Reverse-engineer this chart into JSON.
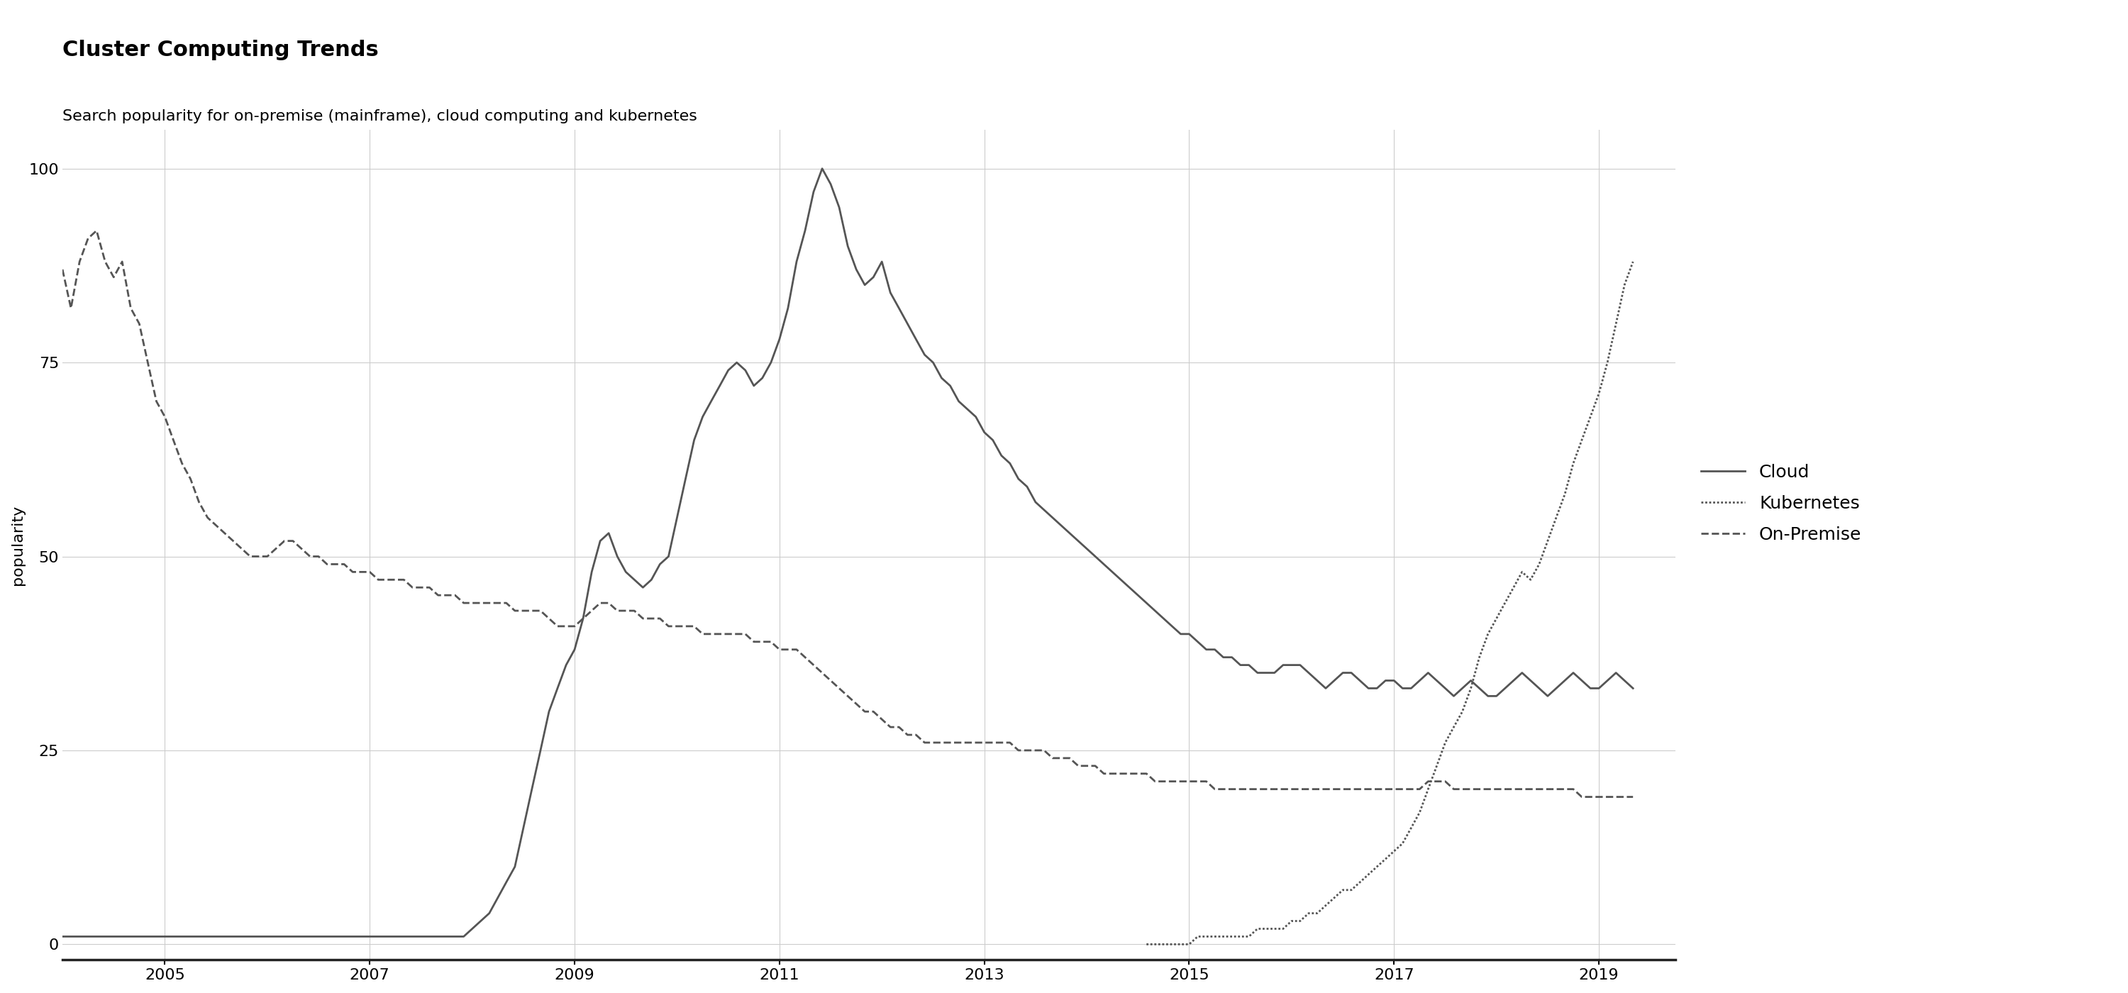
{
  "title": "Cluster Computing Trends",
  "subtitle": "Search popularity for on-premise (mainframe), cloud computing and kubernetes",
  "ylabel": "popularity",
  "background_color": "#ffffff",
  "line_color": "#555555",
  "grid_color": "#cccccc",
  "ylim": [
    -2,
    105
  ],
  "xlim_start": 2004.0,
  "xlim_end": 2019.75,
  "cloud": [
    [
      2004.0,
      1
    ],
    [
      2004.083,
      1
    ],
    [
      2004.167,
      1
    ],
    [
      2004.25,
      1
    ],
    [
      2004.333,
      1
    ],
    [
      2004.417,
      1
    ],
    [
      2004.5,
      1
    ],
    [
      2004.583,
      1
    ],
    [
      2004.667,
      1
    ],
    [
      2004.75,
      1
    ],
    [
      2004.833,
      1
    ],
    [
      2004.917,
      1
    ],
    [
      2005.0,
      1
    ],
    [
      2005.083,
      1
    ],
    [
      2005.167,
      1
    ],
    [
      2005.25,
      1
    ],
    [
      2005.333,
      1
    ],
    [
      2005.417,
      1
    ],
    [
      2005.5,
      1
    ],
    [
      2005.583,
      1
    ],
    [
      2005.667,
      1
    ],
    [
      2005.75,
      1
    ],
    [
      2005.833,
      1
    ],
    [
      2005.917,
      1
    ],
    [
      2006.0,
      1
    ],
    [
      2006.083,
      1
    ],
    [
      2006.167,
      1
    ],
    [
      2006.25,
      1
    ],
    [
      2006.333,
      1
    ],
    [
      2006.417,
      1
    ],
    [
      2006.5,
      1
    ],
    [
      2006.583,
      1
    ],
    [
      2006.667,
      1
    ],
    [
      2006.75,
      1
    ],
    [
      2006.833,
      1
    ],
    [
      2006.917,
      1
    ],
    [
      2007.0,
      1
    ],
    [
      2007.083,
      1
    ],
    [
      2007.167,
      1
    ],
    [
      2007.25,
      1
    ],
    [
      2007.333,
      1
    ],
    [
      2007.417,
      1
    ],
    [
      2007.5,
      1
    ],
    [
      2007.583,
      1
    ],
    [
      2007.667,
      1
    ],
    [
      2007.75,
      1
    ],
    [
      2007.833,
      1
    ],
    [
      2007.917,
      1
    ],
    [
      2008.0,
      2
    ],
    [
      2008.083,
      3
    ],
    [
      2008.167,
      4
    ],
    [
      2008.25,
      6
    ],
    [
      2008.333,
      8
    ],
    [
      2008.417,
      10
    ],
    [
      2008.5,
      15
    ],
    [
      2008.583,
      20
    ],
    [
      2008.667,
      25
    ],
    [
      2008.75,
      30
    ],
    [
      2008.833,
      33
    ],
    [
      2008.917,
      36
    ],
    [
      2009.0,
      38
    ],
    [
      2009.083,
      42
    ],
    [
      2009.167,
      48
    ],
    [
      2009.25,
      52
    ],
    [
      2009.333,
      53
    ],
    [
      2009.417,
      50
    ],
    [
      2009.5,
      48
    ],
    [
      2009.583,
      47
    ],
    [
      2009.667,
      46
    ],
    [
      2009.75,
      47
    ],
    [
      2009.833,
      49
    ],
    [
      2009.917,
      50
    ],
    [
      2010.0,
      55
    ],
    [
      2010.083,
      60
    ],
    [
      2010.167,
      65
    ],
    [
      2010.25,
      68
    ],
    [
      2010.333,
      70
    ],
    [
      2010.417,
      72
    ],
    [
      2010.5,
      74
    ],
    [
      2010.583,
      75
    ],
    [
      2010.667,
      74
    ],
    [
      2010.75,
      72
    ],
    [
      2010.833,
      73
    ],
    [
      2010.917,
      75
    ],
    [
      2011.0,
      78
    ],
    [
      2011.083,
      82
    ],
    [
      2011.167,
      88
    ],
    [
      2011.25,
      92
    ],
    [
      2011.333,
      97
    ],
    [
      2011.417,
      100
    ],
    [
      2011.5,
      98
    ],
    [
      2011.583,
      95
    ],
    [
      2011.667,
      90
    ],
    [
      2011.75,
      87
    ],
    [
      2011.833,
      85
    ],
    [
      2011.917,
      86
    ],
    [
      2012.0,
      88
    ],
    [
      2012.083,
      84
    ],
    [
      2012.167,
      82
    ],
    [
      2012.25,
      80
    ],
    [
      2012.333,
      78
    ],
    [
      2012.417,
      76
    ],
    [
      2012.5,
      75
    ],
    [
      2012.583,
      73
    ],
    [
      2012.667,
      72
    ],
    [
      2012.75,
      70
    ],
    [
      2012.833,
      69
    ],
    [
      2012.917,
      68
    ],
    [
      2013.0,
      66
    ],
    [
      2013.083,
      65
    ],
    [
      2013.167,
      63
    ],
    [
      2013.25,
      62
    ],
    [
      2013.333,
      60
    ],
    [
      2013.417,
      59
    ],
    [
      2013.5,
      57
    ],
    [
      2013.583,
      56
    ],
    [
      2013.667,
      55
    ],
    [
      2013.75,
      54
    ],
    [
      2013.833,
      53
    ],
    [
      2013.917,
      52
    ],
    [
      2014.0,
      51
    ],
    [
      2014.083,
      50
    ],
    [
      2014.167,
      49
    ],
    [
      2014.25,
      48
    ],
    [
      2014.333,
      47
    ],
    [
      2014.417,
      46
    ],
    [
      2014.5,
      45
    ],
    [
      2014.583,
      44
    ],
    [
      2014.667,
      43
    ],
    [
      2014.75,
      42
    ],
    [
      2014.833,
      41
    ],
    [
      2014.917,
      40
    ],
    [
      2015.0,
      40
    ],
    [
      2015.083,
      39
    ],
    [
      2015.167,
      38
    ],
    [
      2015.25,
      38
    ],
    [
      2015.333,
      37
    ],
    [
      2015.417,
      37
    ],
    [
      2015.5,
      36
    ],
    [
      2015.583,
      36
    ],
    [
      2015.667,
      35
    ],
    [
      2015.75,
      35
    ],
    [
      2015.833,
      35
    ],
    [
      2015.917,
      36
    ],
    [
      2016.0,
      36
    ],
    [
      2016.083,
      36
    ],
    [
      2016.167,
      35
    ],
    [
      2016.25,
      34
    ],
    [
      2016.333,
      33
    ],
    [
      2016.417,
      34
    ],
    [
      2016.5,
      35
    ],
    [
      2016.583,
      35
    ],
    [
      2016.667,
      34
    ],
    [
      2016.75,
      33
    ],
    [
      2016.833,
      33
    ],
    [
      2016.917,
      34
    ],
    [
      2017.0,
      34
    ],
    [
      2017.083,
      33
    ],
    [
      2017.167,
      33
    ],
    [
      2017.25,
      34
    ],
    [
      2017.333,
      35
    ],
    [
      2017.417,
      34
    ],
    [
      2017.5,
      33
    ],
    [
      2017.583,
      32
    ],
    [
      2017.667,
      33
    ],
    [
      2017.75,
      34
    ],
    [
      2017.833,
      33
    ],
    [
      2017.917,
      32
    ],
    [
      2018.0,
      32
    ],
    [
      2018.083,
      33
    ],
    [
      2018.167,
      34
    ],
    [
      2018.25,
      35
    ],
    [
      2018.333,
      34
    ],
    [
      2018.417,
      33
    ],
    [
      2018.5,
      32
    ],
    [
      2018.583,
      33
    ],
    [
      2018.667,
      34
    ],
    [
      2018.75,
      35
    ],
    [
      2018.833,
      34
    ],
    [
      2018.917,
      33
    ],
    [
      2019.0,
      33
    ],
    [
      2019.083,
      34
    ],
    [
      2019.167,
      35
    ],
    [
      2019.25,
      34
    ],
    [
      2019.333,
      33
    ]
  ],
  "kubernetes": [
    [
      2014.583,
      0
    ],
    [
      2014.667,
      0
    ],
    [
      2014.75,
      0
    ],
    [
      2014.833,
      0
    ],
    [
      2014.917,
      0
    ],
    [
      2015.0,
      0
    ],
    [
      2015.083,
      1
    ],
    [
      2015.167,
      1
    ],
    [
      2015.25,
      1
    ],
    [
      2015.333,
      1
    ],
    [
      2015.417,
      1
    ],
    [
      2015.5,
      1
    ],
    [
      2015.583,
      1
    ],
    [
      2015.667,
      2
    ],
    [
      2015.75,
      2
    ],
    [
      2015.833,
      2
    ],
    [
      2015.917,
      2
    ],
    [
      2016.0,
      3
    ],
    [
      2016.083,
      3
    ],
    [
      2016.167,
      4
    ],
    [
      2016.25,
      4
    ],
    [
      2016.333,
      5
    ],
    [
      2016.417,
      6
    ],
    [
      2016.5,
      7
    ],
    [
      2016.583,
      7
    ],
    [
      2016.667,
      8
    ],
    [
      2016.75,
      9
    ],
    [
      2016.833,
      10
    ],
    [
      2016.917,
      11
    ],
    [
      2017.0,
      12
    ],
    [
      2017.083,
      13
    ],
    [
      2017.167,
      15
    ],
    [
      2017.25,
      17
    ],
    [
      2017.333,
      20
    ],
    [
      2017.417,
      23
    ],
    [
      2017.5,
      26
    ],
    [
      2017.583,
      28
    ],
    [
      2017.667,
      30
    ],
    [
      2017.75,
      33
    ],
    [
      2017.833,
      37
    ],
    [
      2017.917,
      40
    ],
    [
      2018.0,
      42
    ],
    [
      2018.083,
      44
    ],
    [
      2018.167,
      46
    ],
    [
      2018.25,
      48
    ],
    [
      2018.333,
      47
    ],
    [
      2018.417,
      49
    ],
    [
      2018.5,
      52
    ],
    [
      2018.583,
      55
    ],
    [
      2018.667,
      58
    ],
    [
      2018.75,
      62
    ],
    [
      2018.833,
      65
    ],
    [
      2018.917,
      68
    ],
    [
      2019.0,
      71
    ],
    [
      2019.083,
      75
    ],
    [
      2019.167,
      80
    ],
    [
      2019.25,
      85
    ],
    [
      2019.333,
      88
    ]
  ],
  "onpremise": [
    [
      2004.0,
      87
    ],
    [
      2004.083,
      82
    ],
    [
      2004.167,
      88
    ],
    [
      2004.25,
      91
    ],
    [
      2004.333,
      92
    ],
    [
      2004.417,
      88
    ],
    [
      2004.5,
      86
    ],
    [
      2004.583,
      88
    ],
    [
      2004.667,
      82
    ],
    [
      2004.75,
      80
    ],
    [
      2004.833,
      75
    ],
    [
      2004.917,
      70
    ],
    [
      2005.0,
      68
    ],
    [
      2005.083,
      65
    ],
    [
      2005.167,
      62
    ],
    [
      2005.25,
      60
    ],
    [
      2005.333,
      57
    ],
    [
      2005.417,
      55
    ],
    [
      2005.5,
      54
    ],
    [
      2005.583,
      53
    ],
    [
      2005.667,
      52
    ],
    [
      2005.75,
      51
    ],
    [
      2005.833,
      50
    ],
    [
      2005.917,
      50
    ],
    [
      2006.0,
      50
    ],
    [
      2006.083,
      51
    ],
    [
      2006.167,
      52
    ],
    [
      2006.25,
      52
    ],
    [
      2006.333,
      51
    ],
    [
      2006.417,
      50
    ],
    [
      2006.5,
      50
    ],
    [
      2006.583,
      49
    ],
    [
      2006.667,
      49
    ],
    [
      2006.75,
      49
    ],
    [
      2006.833,
      48
    ],
    [
      2006.917,
      48
    ],
    [
      2007.0,
      48
    ],
    [
      2007.083,
      47
    ],
    [
      2007.167,
      47
    ],
    [
      2007.25,
      47
    ],
    [
      2007.333,
      47
    ],
    [
      2007.417,
      46
    ],
    [
      2007.5,
      46
    ],
    [
      2007.583,
      46
    ],
    [
      2007.667,
      45
    ],
    [
      2007.75,
      45
    ],
    [
      2007.833,
      45
    ],
    [
      2007.917,
      44
    ],
    [
      2008.0,
      44
    ],
    [
      2008.083,
      44
    ],
    [
      2008.167,
      44
    ],
    [
      2008.25,
      44
    ],
    [
      2008.333,
      44
    ],
    [
      2008.417,
      43
    ],
    [
      2008.5,
      43
    ],
    [
      2008.583,
      43
    ],
    [
      2008.667,
      43
    ],
    [
      2008.75,
      42
    ],
    [
      2008.833,
      41
    ],
    [
      2008.917,
      41
    ],
    [
      2009.0,
      41
    ],
    [
      2009.083,
      42
    ],
    [
      2009.167,
      43
    ],
    [
      2009.25,
      44
    ],
    [
      2009.333,
      44
    ],
    [
      2009.417,
      43
    ],
    [
      2009.5,
      43
    ],
    [
      2009.583,
      43
    ],
    [
      2009.667,
      42
    ],
    [
      2009.75,
      42
    ],
    [
      2009.833,
      42
    ],
    [
      2009.917,
      41
    ],
    [
      2010.0,
      41
    ],
    [
      2010.083,
      41
    ],
    [
      2010.167,
      41
    ],
    [
      2010.25,
      40
    ],
    [
      2010.333,
      40
    ],
    [
      2010.417,
      40
    ],
    [
      2010.5,
      40
    ],
    [
      2010.583,
      40
    ],
    [
      2010.667,
      40
    ],
    [
      2010.75,
      39
    ],
    [
      2010.833,
      39
    ],
    [
      2010.917,
      39
    ],
    [
      2011.0,
      38
    ],
    [
      2011.083,
      38
    ],
    [
      2011.167,
      38
    ],
    [
      2011.25,
      37
    ],
    [
      2011.333,
      36
    ],
    [
      2011.417,
      35
    ],
    [
      2011.5,
      34
    ],
    [
      2011.583,
      33
    ],
    [
      2011.667,
      32
    ],
    [
      2011.75,
      31
    ],
    [
      2011.833,
      30
    ],
    [
      2011.917,
      30
    ],
    [
      2012.0,
      29
    ],
    [
      2012.083,
      28
    ],
    [
      2012.167,
      28
    ],
    [
      2012.25,
      27
    ],
    [
      2012.333,
      27
    ],
    [
      2012.417,
      26
    ],
    [
      2012.5,
      26
    ],
    [
      2012.583,
      26
    ],
    [
      2012.667,
      26
    ],
    [
      2012.75,
      26
    ],
    [
      2012.833,
      26
    ],
    [
      2012.917,
      26
    ],
    [
      2013.0,
      26
    ],
    [
      2013.083,
      26
    ],
    [
      2013.167,
      26
    ],
    [
      2013.25,
      26
    ],
    [
      2013.333,
      25
    ],
    [
      2013.417,
      25
    ],
    [
      2013.5,
      25
    ],
    [
      2013.583,
      25
    ],
    [
      2013.667,
      24
    ],
    [
      2013.75,
      24
    ],
    [
      2013.833,
      24
    ],
    [
      2013.917,
      23
    ],
    [
      2014.0,
      23
    ],
    [
      2014.083,
      23
    ],
    [
      2014.167,
      22
    ],
    [
      2014.25,
      22
    ],
    [
      2014.333,
      22
    ],
    [
      2014.417,
      22
    ],
    [
      2014.5,
      22
    ],
    [
      2014.583,
      22
    ],
    [
      2014.667,
      21
    ],
    [
      2014.75,
      21
    ],
    [
      2014.833,
      21
    ],
    [
      2014.917,
      21
    ],
    [
      2015.0,
      21
    ],
    [
      2015.083,
      21
    ],
    [
      2015.167,
      21
    ],
    [
      2015.25,
      20
    ],
    [
      2015.333,
      20
    ],
    [
      2015.417,
      20
    ],
    [
      2015.5,
      20
    ],
    [
      2015.583,
      20
    ],
    [
      2015.667,
      20
    ],
    [
      2015.75,
      20
    ],
    [
      2015.833,
      20
    ],
    [
      2015.917,
      20
    ],
    [
      2016.0,
      20
    ],
    [
      2016.083,
      20
    ],
    [
      2016.167,
      20
    ],
    [
      2016.25,
      20
    ],
    [
      2016.333,
      20
    ],
    [
      2016.417,
      20
    ],
    [
      2016.5,
      20
    ],
    [
      2016.583,
      20
    ],
    [
      2016.667,
      20
    ],
    [
      2016.75,
      20
    ],
    [
      2016.833,
      20
    ],
    [
      2016.917,
      20
    ],
    [
      2017.0,
      20
    ],
    [
      2017.083,
      20
    ],
    [
      2017.167,
      20
    ],
    [
      2017.25,
      20
    ],
    [
      2017.333,
      21
    ],
    [
      2017.417,
      21
    ],
    [
      2017.5,
      21
    ],
    [
      2017.583,
      20
    ],
    [
      2017.667,
      20
    ],
    [
      2017.75,
      20
    ],
    [
      2017.833,
      20
    ],
    [
      2017.917,
      20
    ],
    [
      2018.0,
      20
    ],
    [
      2018.083,
      20
    ],
    [
      2018.167,
      20
    ],
    [
      2018.25,
      20
    ],
    [
      2018.333,
      20
    ],
    [
      2018.417,
      20
    ],
    [
      2018.5,
      20
    ],
    [
      2018.583,
      20
    ],
    [
      2018.667,
      20
    ],
    [
      2018.75,
      20
    ],
    [
      2018.833,
      19
    ],
    [
      2018.917,
      19
    ],
    [
      2019.0,
      19
    ],
    [
      2019.083,
      19
    ],
    [
      2019.167,
      19
    ],
    [
      2019.25,
      19
    ],
    [
      2019.333,
      19
    ]
  ],
  "xticks": [
    2005,
    2007,
    2009,
    2011,
    2013,
    2015,
    2017,
    2019
  ],
  "yticks": [
    0,
    25,
    50,
    75,
    100
  ],
  "title_fontsize": 22,
  "subtitle_fontsize": 16,
  "axis_label_fontsize": 16,
  "tick_fontsize": 16,
  "legend_fontsize": 18,
  "line_width": 2.0
}
